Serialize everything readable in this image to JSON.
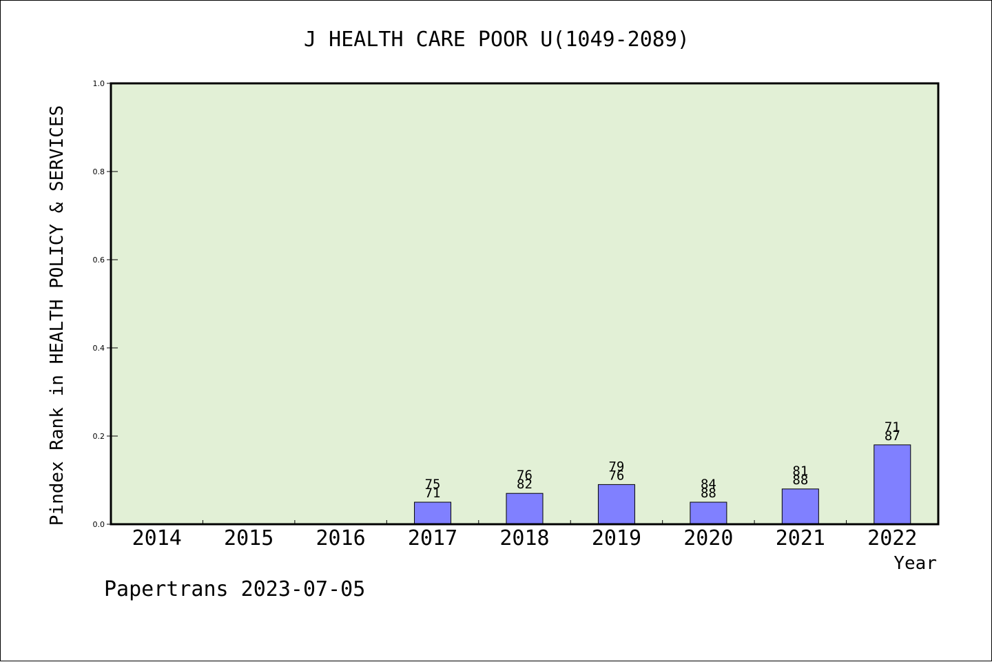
{
  "chart_data": {
    "type": "bar",
    "title": "J HEALTH CARE POOR U(1049-2089)",
    "xlabel": "Year",
    "ylabel": "Pindex Rank in HEALTH POLICY & SERVICES",
    "ylim": [
      0,
      1.0
    ],
    "yticks": [
      "0.0",
      "0.2",
      "0.4",
      "0.6",
      "0.8",
      "1.0"
    ],
    "categories": [
      "2014",
      "2015",
      "2016",
      "2017",
      "2018",
      "2019",
      "2020",
      "2021",
      "2022"
    ],
    "values": [
      null,
      null,
      null,
      0.05,
      0.07,
      0.09,
      0.05,
      0.08,
      0.18
    ],
    "labels_top": [
      "",
      "",
      "",
      "75",
      "76",
      "79",
      "84",
      "81",
      "71"
    ],
    "labels_bottom": [
      "",
      "",
      "",
      "71",
      "82",
      "76",
      "88",
      "88",
      "87"
    ],
    "grid": false,
    "colors": {
      "plot_bg": "#e2f0d6",
      "bar": "#8080ff",
      "bar_edge": "#000000"
    }
  },
  "footer": "Papertrans 2023-07-05"
}
